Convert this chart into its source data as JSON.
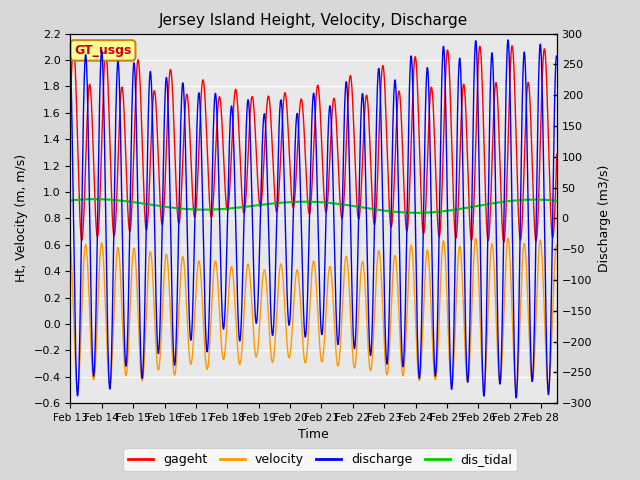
{
  "title": "Jersey Island Height, Velocity, Discharge",
  "xlabel": "Time",
  "ylabel_left": "Ht, Velocity (m, m/s)",
  "ylabel_right": "Discharge (m3/s)",
  "xlim_days": [
    0,
    15.5
  ],
  "ylim_left": [
    -0.6,
    2.2
  ],
  "ylim_right": [
    -300,
    300
  ],
  "x_tick_labels": [
    "Feb 13",
    "Feb 14",
    "Feb 15",
    "Feb 16",
    "Feb 17",
    "Feb 18",
    "Feb 19",
    "Feb 20",
    "Feb 21",
    "Feb 22",
    "Feb 23",
    "Feb 24",
    "Feb 25",
    "Feb 26",
    "Feb 27",
    "Feb 28"
  ],
  "legend_labels": [
    "gageht",
    "velocity",
    "discharge",
    "dis_tidal"
  ],
  "legend_colors": [
    "#ff0000",
    "#ff9900",
    "#0000ff",
    "#00cc00"
  ],
  "box_label": "GT_usgs",
  "box_facecolor": "#ffff99",
  "box_edgecolor": "#cc8800",
  "box_textcolor": "#cc0000",
  "gageht_color": "#ff0000",
  "velocity_color": "#ff9900",
  "discharge_color": "#0000ff",
  "dis_tidal_color": "#00cc00",
  "bg_color": "#d8d8d8",
  "plot_bg_color": "#e8e8e8",
  "grid_color": "#ffffff",
  "tidal_period_hours": 12.42,
  "tidal_period2_hours": 12.0,
  "num_days": 15.5,
  "dt_hours": 0.083333
}
